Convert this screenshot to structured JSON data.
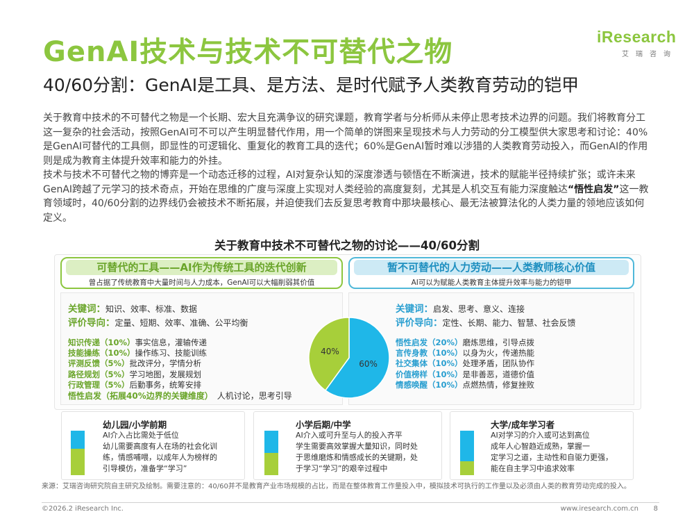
{
  "title": "GenAI技术与技术不可替代之物",
  "subtitle": "40/60分割：GenAI是工具、是方法、是时代赋予人类教育劳动的铠甲",
  "logo": {
    "main": "iResearch",
    "sub": "艾瑞咨询"
  },
  "body": {
    "p1": "关于教育中技术的不可替代之物是一个长期、宏大且充满争议的研究课题，教育学者与分析师从未停止思考技术边界的问题。我们将教育分工这一复杂的社会活动，按照GenAI可不可以产生明显替代作用，用一个简单的饼图来呈现技术与人力劳动的分工模型供大家思考和讨论：40%是GenAI可替代的工具侧，即显性的可逻辑化、重复化的教育工具的迭代；60%是GenAI暂时难以涉猎的人类教育劳动投入，而GenAI的作用则是成为教育主体提升效率和能力的外挂。",
    "p2_a": "技术与技术不可替代之物的博弈是一个动态迁移的过程，AI对复杂认知的深度渗透与顿悟在不断演进，技术的赋能半径持续扩张；或许未来GenAI跨越了元学习的技术奇点，开始在思维的广度与深度上实现对人类经验的高度复刻，尤其是人机交互有能力深度触达",
    "p2_bold": "“悟性启发”",
    "p2_b": "这一教育领域时，40/60分割的边界线仍会被技术不断拓展，并迫使我们去反复思考教育中那块最核心、最无法被算法化的人类力量的领地应该如何定义。"
  },
  "section_title": "关于教育中技术不可替代之物的讨论——40/60分割",
  "left": {
    "header": "可替代的工具——AI作为传统工具的迭代创新",
    "desc": "曾占据了传统教育中大量时间与人力成本，GenAI可以大幅削弱其价值",
    "kw_label": "关键词：",
    "kw_text": "知识、效率、标准、数据",
    "eval_label": "评价导向：",
    "eval_text": "定量、短期、效率、准确、公平均衡",
    "items": [
      {
        "k": "知识传递（10%）",
        "v": "事实信息，灌输传递"
      },
      {
        "k": "技能操练（10%）",
        "v": "操作练习、技能训练"
      },
      {
        "k": "评测反馈（5%）",
        "v": "批改评分，学情分析"
      },
      {
        "k": "路径规划（5%）",
        "v": "学习地图，发展规划"
      },
      {
        "k": "行政管理（5%）",
        "v": "后勤事务，统筹安排"
      },
      {
        "k": "悟性启发（拓展40%边界的关键维度）",
        "v": "人机讨论，思考引导"
      }
    ]
  },
  "right": {
    "header": "暂不可替代的人力劳动——人类教师核心价值",
    "desc": "AI可以为赋能人类教育主体提升效率与能力的铠甲",
    "kw_label": "关键词：",
    "kw_text": "启发、思考、意义、连接",
    "eval_label": "评价导向：",
    "eval_text": "定性、长期、能力、智慧、社会反馈",
    "items": [
      {
        "k": "悟性启发（20%）",
        "v": "磨炼思维，引导点拨"
      },
      {
        "k": "言传身教（10%）",
        "v": "以身为火，传递热能"
      },
      {
        "k": "社交集体（10%）",
        "v": "处理矛盾，团队协作"
      },
      {
        "k": "价值榜样（10%）",
        "v": "是非善恶，道德价值"
      },
      {
        "k": "情感唤醒（10%）",
        "v": "点燃热情，修复挫败"
      }
    ]
  },
  "pie": {
    "slices": [
      {
        "label": "40%",
        "value": 40,
        "color": "#a7cf3a"
      },
      {
        "label": "60%",
        "value": 60,
        "color": "#1fb7e8"
      }
    ]
  },
  "stages": [
    {
      "title": "幼儿园/小学前期",
      "lines": [
        "AI介入占比需处于低位",
        "幼儿需要高度有人在场的社会化训",
        "练，情感哺喂，以成年人为榜样的",
        "引导模仿，准备学“学习”"
      ],
      "ai_share": 0.4
    },
    {
      "title": "小学后期/中学",
      "lines": [
        "AI介入或可升至与人的投入齐平",
        "学生需要高效掌握大量知识，同时处",
        "于思维磨炼和情感成长的关键期，处",
        "于学习“学习”的艰辛过程中"
      ],
      "ai_share": 0.5
    },
    {
      "title": "大学/成年学习者",
      "lines": [
        "AI对学习的介入或可达到高位",
        "成年人心智趋近成熟，掌握一",
        "定学习之道，主动性和自驱力更强，",
        "能在自主学习中追求效率"
      ],
      "ai_share": 0.68
    }
  ],
  "source": "来源：艾瑞咨询研究院自主研究及绘制。需要注意的：40/60并不是教育产业市场规模的占比，而是在整体教育工作量投入中，模拟技术可执行的工作量以及必须由人类的教育劳动完成的投入。",
  "footer": {
    "copyright": "©2026.2 iResearch Inc.",
    "url": "www.iresearch.com.cn",
    "page": "8"
  }
}
